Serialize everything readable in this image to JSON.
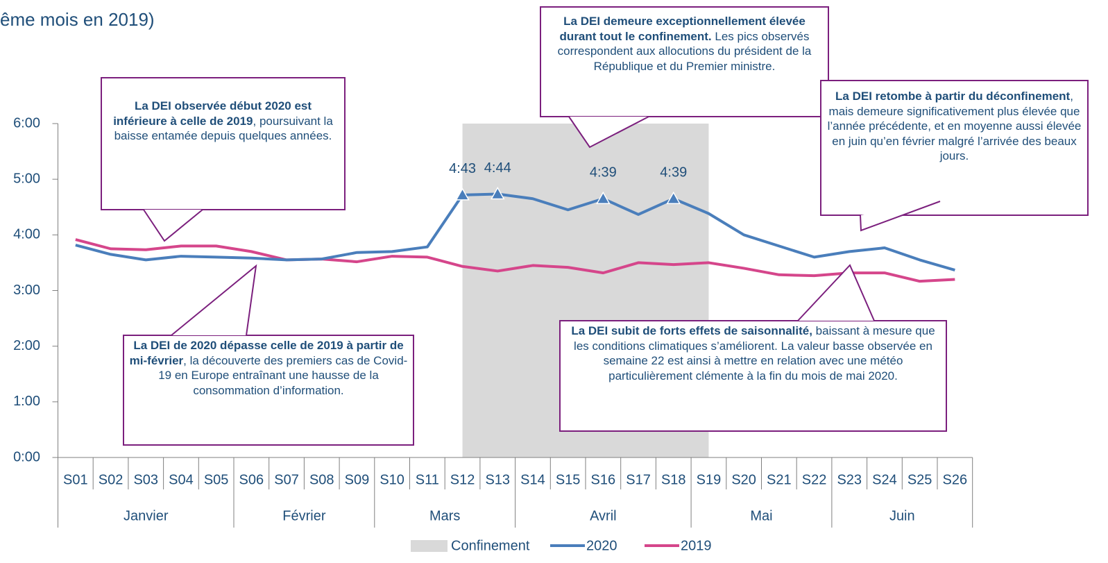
{
  "chart_data": {
    "type": "line",
    "title": "ême mois en 2019)",
    "categories": [
      "S01",
      "S02",
      "S03",
      "S04",
      "S05",
      "S06",
      "S07",
      "S08",
      "S09",
      "S10",
      "S11",
      "S12",
      "S13",
      "S14",
      "S15",
      "S16",
      "S17",
      "S18",
      "S19",
      "S20",
      "S21",
      "S22",
      "S23",
      "S24",
      "S25",
      "S26"
    ],
    "months": [
      {
        "label": "Janvier",
        "start": "S01",
        "end": "S05"
      },
      {
        "label": "Février",
        "start": "S06",
        "end": "S09"
      },
      {
        "label": "Mars",
        "start": "S10",
        "end": "S13"
      },
      {
        "label": "Avril",
        "start": "S14",
        "end": "S18"
      },
      {
        "label": "Mai",
        "start": "S19",
        "end": "S22"
      },
      {
        "label": "Juin",
        "start": "S23",
        "end": "S26"
      }
    ],
    "band": {
      "name": "Confinement",
      "from": "S12",
      "to": "S19",
      "color": "#d9d9d9"
    },
    "series": [
      {
        "name": "2020",
        "color": "#4a7ebb",
        "values": [
          229,
          219,
          213,
          217,
          216,
          215,
          213,
          214,
          221,
          222,
          227,
          283,
          284,
          279,
          267,
          279,
          262,
          279,
          263,
          240,
          228,
          216,
          222,
          226,
          213,
          202
        ],
        "value_labels": [
          null,
          null,
          null,
          null,
          null,
          null,
          null,
          null,
          null,
          null,
          null,
          "4:43",
          "4:44",
          null,
          null,
          "4:39",
          null,
          "4:39",
          null,
          null,
          null,
          null,
          null,
          null,
          null,
          null
        ]
      },
      {
        "name": "2019",
        "color": "#d5468b",
        "values": [
          235,
          225,
          224,
          228,
          228,
          222,
          213,
          214,
          211,
          217,
          216,
          206,
          201,
          207,
          205,
          199,
          210,
          208,
          210,
          204,
          197,
          196,
          199,
          199,
          190,
          192
        ]
      }
    ],
    "ylim": [
      0,
      360
    ],
    "yticks": [
      {
        "value": 0,
        "label": "0:00"
      },
      {
        "value": 60,
        "label": "1:00"
      },
      {
        "value": 120,
        "label": "2:00"
      },
      {
        "value": 180,
        "label": "3:00"
      },
      {
        "value": 240,
        "label": "4:00"
      },
      {
        "value": 300,
        "label": "5:00"
      },
      {
        "value": 360,
        "label": "6:00"
      }
    ],
    "annotations": [
      {
        "bold": "La DEI observée début 2020 est inférieure à celle de 2019",
        "text": ", poursuivant la baisse entamée depuis quelques années."
      },
      {
        "bold": "La DEI demeure exceptionnellement élevée durant tout le confinement.",
        "text": " Les pics observés correspondent aux allocutions du président de la République et du Premier ministre."
      },
      {
        "bold": "La DEI retombe à partir du déconfinement",
        "text": ", mais demeure significativement plus élevée que l’année précédente, et en moyenne aussi élevée en juin qu’en février malgré l’arrivée des beaux jours."
      },
      {
        "bold": "La DEI de 2020 dépasse celle de 2019 à partir de mi-février",
        "text": ", la découverte des premiers cas de Covid-19 en Europe entraînant une hausse de la consommation d’information."
      },
      {
        "bold": "La DEI subit de forts effets de saisonnalité,",
        "text": " baissant à mesure que les conditions climatiques s’améliorent. La valeur basse observée en semaine 22 est ainsi à mettre en relation avec une météo particulièrement clémente à la fin du mois de mai 2020."
      }
    ]
  }
}
